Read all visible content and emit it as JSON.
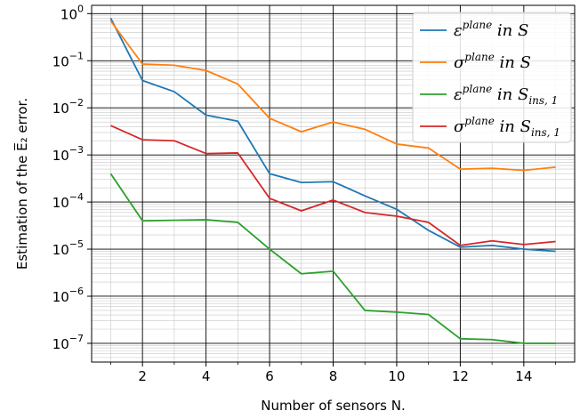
{
  "chart_data": {
    "type": "line",
    "xlabel": "Number of sensors N.",
    "ylabel": "Estimation of the E̅₂ error.",
    "yscale": "log",
    "xlim": [
      0.4,
      15.6
    ],
    "ylim": [
      4e-08,
      1.5
    ],
    "grid": "major and minor",
    "legend_position": "top-right",
    "x_ticks": [
      2,
      4,
      6,
      8,
      10,
      12,
      14
    ],
    "x_tick_labels": [
      "2",
      "4",
      "6",
      "8",
      "10",
      "12",
      "14"
    ],
    "y_ticks": [
      1e-07,
      1e-06,
      1e-05,
      0.0001,
      0.001,
      0.01,
      0.1,
      1
    ],
    "y_tick_labels": [
      {
        "base": "10",
        "exp": "−7"
      },
      {
        "base": "10",
        "exp": "−6"
      },
      {
        "base": "10",
        "exp": "−5"
      },
      {
        "base": "10",
        "exp": "−4"
      },
      {
        "base": "10",
        "exp": "−3"
      },
      {
        "base": "10",
        "exp": "−2"
      },
      {
        "base": "10",
        "exp": "−1"
      },
      {
        "base": "10",
        "exp": "0"
      }
    ],
    "x": [
      1,
      2,
      3,
      4,
      5,
      6,
      7,
      8,
      9,
      10,
      11,
      12,
      13,
      14,
      15
    ],
    "series": [
      {
        "sym": "ε",
        "sup": "plane",
        "mid": " in ",
        "set": "S",
        "sub": "",
        "color": "#1f77b4",
        "values": [
          0.8,
          0.038,
          0.022,
          0.007,
          0.0052,
          0.0004,
          0.00026,
          0.00027,
          0.000135,
          7e-05,
          2.5e-05,
          1.1e-05,
          1.2e-05,
          1e-05,
          9e-06
        ]
      },
      {
        "sym": "σ",
        "sup": "plane",
        "mid": " in ",
        "set": "S",
        "sub": "",
        "color": "#ff7f0e",
        "values": [
          0.7,
          0.085,
          0.08,
          0.062,
          0.032,
          0.006,
          0.0031,
          0.005,
          0.0035,
          0.0017,
          0.0014,
          0.0005,
          0.00052,
          0.00047,
          0.00055
        ]
      },
      {
        "sym": "ε",
        "sup": "plane",
        "mid": " in ",
        "set": "S",
        "sub": "ins, 1",
        "color": "#2ca02c",
        "values": [
          0.0004,
          4e-05,
          4.1e-05,
          4.2e-05,
          3.7e-05,
          1e-05,
          3e-06,
          3.4e-06,
          5e-07,
          4.6e-07,
          4.1e-07,
          1.25e-07,
          1.2e-07,
          1e-07,
          1e-07
        ]
      },
      {
        "sym": "σ",
        "sup": "plane",
        "mid": " in ",
        "set": "S",
        "sub": "ins, 1",
        "color": "#d62728",
        "values": [
          0.0042,
          0.0021,
          0.002,
          0.00107,
          0.0011,
          0.00012,
          6.5e-05,
          0.00011,
          6e-05,
          5e-05,
          3.7e-05,
          1.2e-05,
          1.5e-05,
          1.25e-05,
          1.45e-05
        ]
      }
    ]
  }
}
